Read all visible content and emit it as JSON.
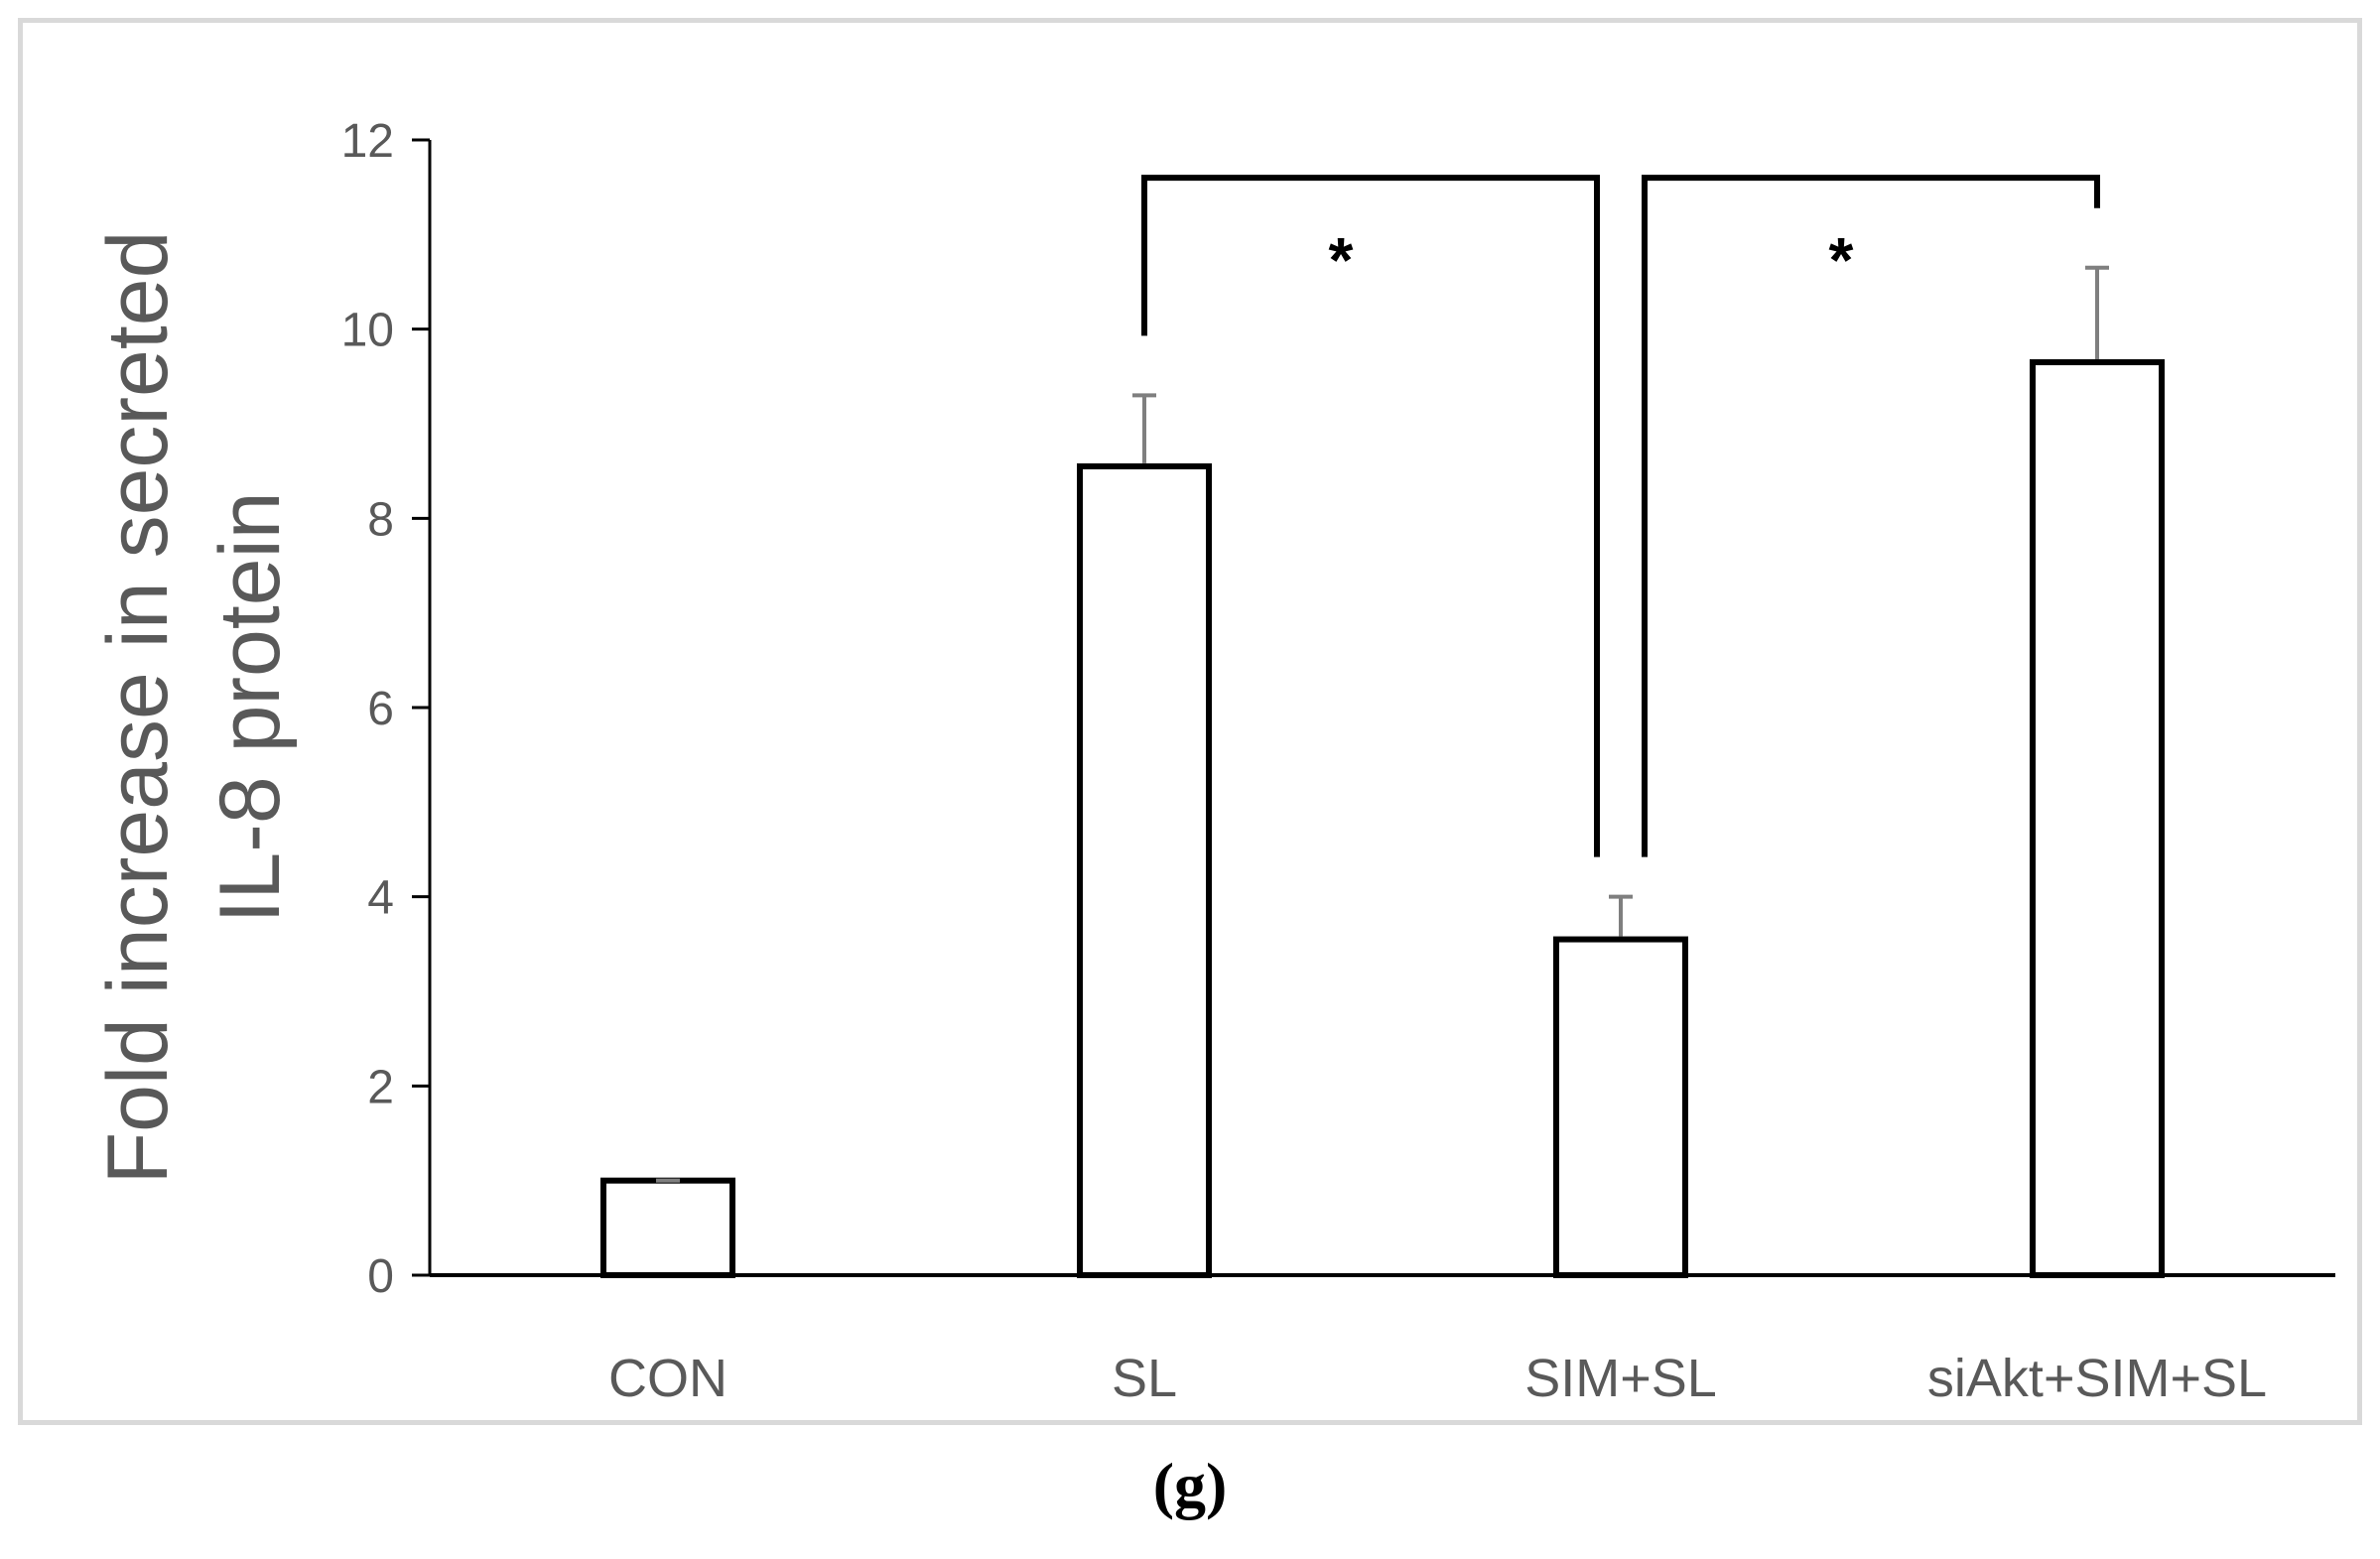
{
  "panel_label": "(g)",
  "chart_data": {
    "type": "bar",
    "categories": [
      "CON",
      "SL",
      "SIM+SL",
      "siAkt+SIM+SL"
    ],
    "series": [
      {
        "values": [
          1.0,
          8.55,
          3.55,
          9.65
        ],
        "error": [
          0.0,
          0.75,
          0.45,
          1.0
        ]
      }
    ],
    "title": "",
    "xlabel": "",
    "ylabel_lines": [
      "Fold increase in secreted",
      "IL-8 protein"
    ],
    "ylim": [
      0,
      12
    ],
    "yticks": [
      0,
      2,
      4,
      6,
      8,
      10,
      12
    ],
    "grid": false,
    "legend": "none",
    "significance": [
      {
        "from": "SL",
        "to": "SIM+SL",
        "label": "*"
      },
      {
        "from": "SIM+SL",
        "to": "siAkt+SIM+SL",
        "label": "*"
      }
    ],
    "colors": {
      "bar_fill": "#ffffff",
      "bar_stroke": "#000000",
      "error_bar": "#7f7f7f",
      "axis_text": "#595959"
    }
  }
}
